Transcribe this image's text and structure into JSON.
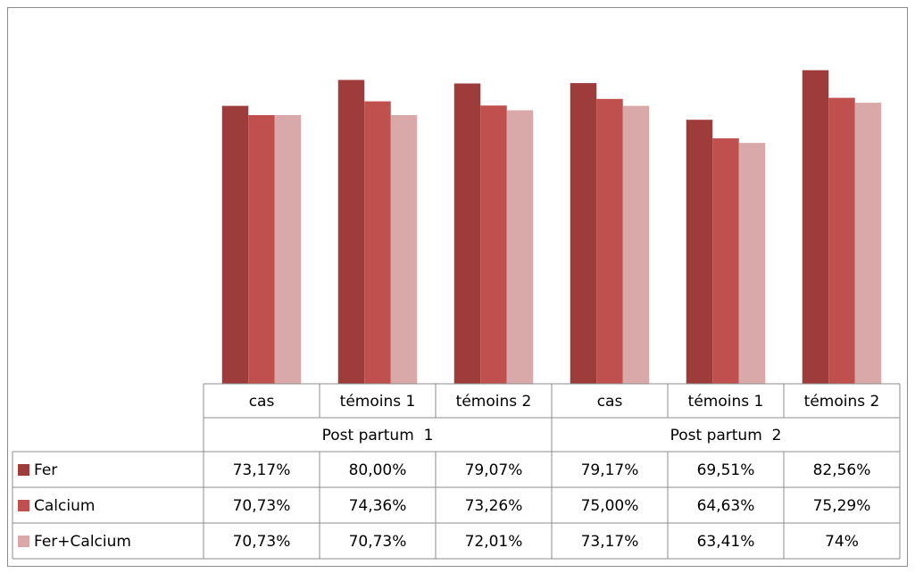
{
  "chart_data": {
    "type": "bar",
    "categories": [
      "cas",
      "témoins 1",
      "témoins 2",
      "cas",
      "témoins 1",
      "témoins 2"
    ],
    "groups": [
      "Post partum  1",
      "Post partum  2"
    ],
    "series": [
      {
        "name": "Fer",
        "color": "#9e3b3b",
        "values": [
          73.17,
          80.0,
          79.07,
          79.17,
          69.51,
          82.56
        ],
        "value_labels": [
          "73,17%",
          "80,00%",
          "79,07%",
          "79,17%",
          "69,51%",
          "82,56%"
        ]
      },
      {
        "name": "Calcium",
        "color": "#c0504d",
        "values": [
          70.73,
          74.36,
          73.26,
          75.0,
          64.63,
          75.29
        ],
        "value_labels": [
          "70,73%",
          "74,36%",
          "73,26%",
          "75,00%",
          "64,63%",
          "75,29%"
        ]
      },
      {
        "name": "Fer+Calcium",
        "color": "#d9a8a8",
        "values": [
          70.73,
          70.73,
          72.01,
          73.17,
          63.41,
          74
        ],
        "value_labels": [
          "70,73%",
          "70,73%",
          "72,01%",
          "73,17%",
          "63,41%",
          "74%"
        ]
      }
    ],
    "ylim": [
      0,
      90
    ]
  }
}
